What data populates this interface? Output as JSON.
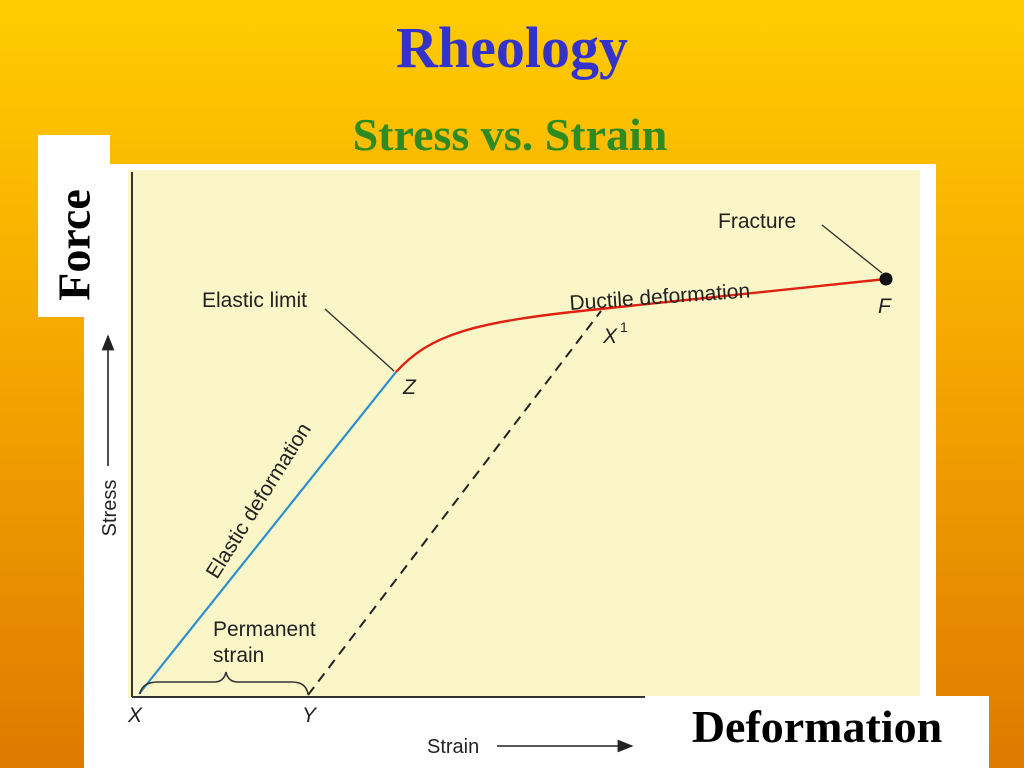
{
  "slide": {
    "title": "Rheology",
    "subtitle": "Stress vs. Strain",
    "force_label": "Force",
    "deformation_label": "Deformation"
  },
  "diagram": {
    "y_axis_label": "Stress",
    "x_axis_label": "Strain",
    "elastic_deformation_label": "Elastic deformation",
    "ductile_deformation_label": "Ductile deformation",
    "elastic_limit_label": "Elastic limit",
    "fracture_label": "Fracture",
    "permanent_strain_line1": "Permanent",
    "permanent_strain_line2": "strain",
    "point_x": "X",
    "point_y": "Y",
    "point_z": "Z",
    "point_f": "F",
    "point_x1": "X",
    "point_x1_superscript": "1"
  },
  "colors": {
    "title": "#3333CC",
    "subtitle": "#2E8B22",
    "elastic_line": "#2A8FD0",
    "ductile_line": "#E02010",
    "plot_background": "#FBF6C8"
  }
}
